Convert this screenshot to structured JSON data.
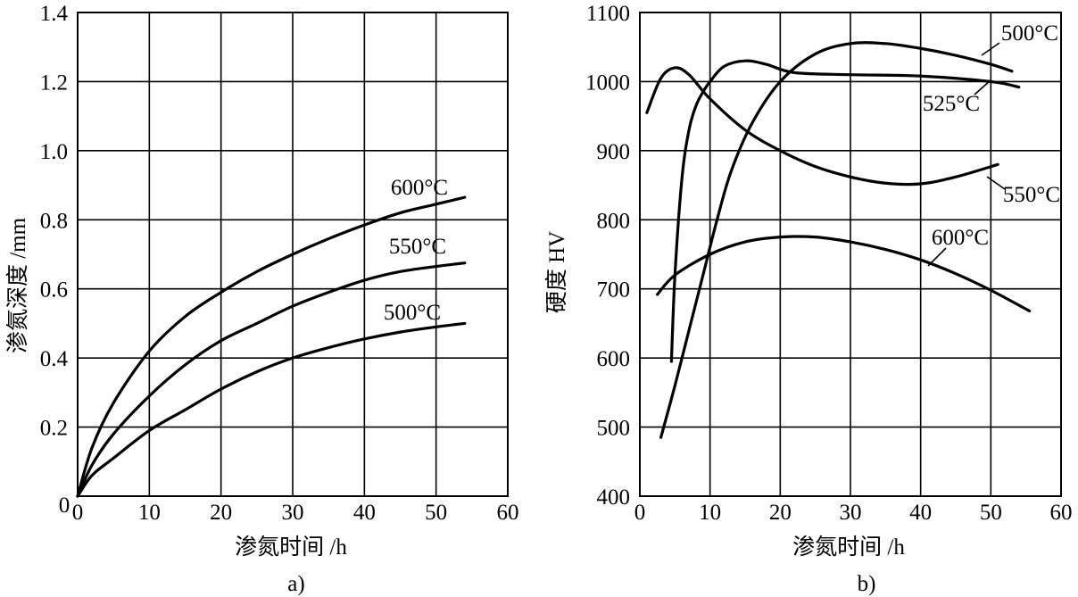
{
  "chart_data": [
    {
      "type": "line",
      "panel_label": "a)",
      "title": "",
      "xlabel": "渗氮时间 /h",
      "ylabel": "渗氮深度 /mm",
      "xlim": [
        0,
        60
      ],
      "ylim": [
        0,
        1.4
      ],
      "xticks": [
        "0",
        "10",
        "20",
        "30",
        "40",
        "50",
        "60"
      ],
      "yticks": [
        "0",
        "0.2",
        "0.4",
        "0.6",
        "0.8",
        "1.0",
        "1.2",
        "1.4"
      ],
      "grid": true,
      "series": [
        {
          "name": "600°C",
          "x": [
            0,
            2,
            5,
            10,
            15,
            20,
            25,
            30,
            35,
            40,
            45,
            50,
            54
          ],
          "y": [
            0,
            0.14,
            0.27,
            0.42,
            0.52,
            0.59,
            0.65,
            0.7,
            0.745,
            0.785,
            0.82,
            0.845,
            0.865
          ]
        },
        {
          "name": "550°C",
          "x": [
            0,
            2,
            5,
            10,
            15,
            20,
            25,
            30,
            35,
            40,
            45,
            50,
            54
          ],
          "y": [
            0,
            0.09,
            0.18,
            0.29,
            0.38,
            0.45,
            0.5,
            0.55,
            0.59,
            0.625,
            0.65,
            0.665,
            0.675
          ]
        },
        {
          "name": "500°C",
          "x": [
            0,
            2,
            5,
            10,
            15,
            20,
            25,
            30,
            35,
            40,
            45,
            50,
            54
          ],
          "y": [
            0,
            0.06,
            0.11,
            0.19,
            0.25,
            0.31,
            0.36,
            0.4,
            0.43,
            0.455,
            0.475,
            0.49,
            0.5
          ]
        }
      ]
    },
    {
      "type": "line",
      "panel_label": "b)",
      "title": "",
      "xlabel": "渗氮时间 /h",
      "ylabel": "硬度 HV",
      "xlim": [
        0,
        60
      ],
      "ylim": [
        400,
        1100
      ],
      "xticks": [
        "0",
        "10",
        "20",
        "30",
        "40",
        "50",
        "60"
      ],
      "yticks": [
        "400",
        "500",
        "600",
        "700",
        "800",
        "900",
        "1000",
        "1100"
      ],
      "grid": true,
      "series": [
        {
          "name": "500°C",
          "x": [
            3,
            5,
            7,
            9,
            11,
            13,
            16,
            20,
            25,
            30,
            35,
            40,
            45,
            50,
            53
          ],
          "y": [
            485,
            560,
            640,
            720,
            800,
            870,
            940,
            1000,
            1040,
            1055,
            1055,
            1048,
            1038,
            1025,
            1015
          ]
        },
        {
          "name": "525°C",
          "x": [
            4.5,
            5,
            6,
            7,
            8,
            9,
            10,
            12,
            15,
            18,
            22,
            30,
            40,
            50,
            54
          ],
          "y": [
            595,
            720,
            860,
            930,
            965,
            985,
            1000,
            1022,
            1030,
            1025,
            1013,
            1010,
            1008,
            1000,
            992
          ]
        },
        {
          "name": "550°C",
          "x": [
            1,
            3,
            5,
            7,
            10,
            15,
            20,
            25,
            30,
            35,
            40,
            45,
            51
          ],
          "y": [
            955,
            1005,
            1020,
            1010,
            975,
            930,
            900,
            877,
            862,
            853,
            852,
            862,
            880
          ]
        },
        {
          "name": "600°C",
          "x": [
            2.5,
            5,
            10,
            15,
            20,
            25,
            30,
            35,
            40,
            45,
            50,
            55.5
          ],
          "y": [
            692,
            720,
            750,
            768,
            775,
            775,
            768,
            757,
            742,
            722,
            698,
            668
          ]
        }
      ]
    }
  ]
}
